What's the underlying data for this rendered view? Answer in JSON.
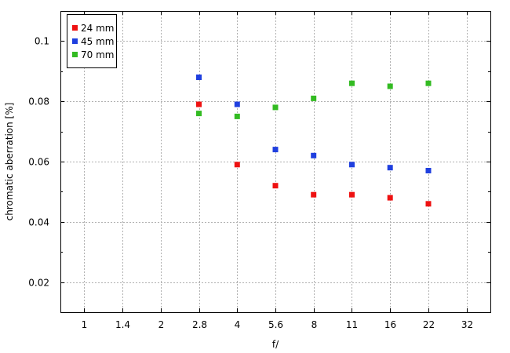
{
  "chart_data": {
    "type": "scatter",
    "title": "",
    "xlabel": "f/",
    "ylabel": "chromatic aberration [%]",
    "categories": [
      "1",
      "1.4",
      "2",
      "2.8",
      "4",
      "5.6",
      "8",
      "11",
      "16",
      "22",
      "32"
    ],
    "yticks": [
      "0.02",
      "0.04",
      "0.06",
      "0.08",
      "0.1"
    ],
    "ylim": [
      0.01,
      0.11
    ],
    "grid": true,
    "legend_position": "top-left",
    "series": [
      {
        "name": "24 mm",
        "color": "#ee1111",
        "x": [
          "2.8",
          "4",
          "5.6",
          "8",
          "11",
          "16",
          "22"
        ],
        "values": [
          0.079,
          0.059,
          0.052,
          0.049,
          0.049,
          0.048,
          0.046
        ]
      },
      {
        "name": "45 mm",
        "color": "#1f3fdf",
        "x": [
          "2.8",
          "4",
          "5.6",
          "8",
          "11",
          "16",
          "22"
        ],
        "values": [
          0.088,
          0.079,
          0.064,
          0.062,
          0.059,
          0.058,
          0.057
        ]
      },
      {
        "name": "70 mm",
        "color": "#33bb22",
        "x": [
          "2.8",
          "4",
          "5.6",
          "8",
          "11",
          "16",
          "22"
        ],
        "values": [
          0.076,
          0.075,
          0.078,
          0.081,
          0.086,
          0.085,
          0.086
        ]
      }
    ]
  }
}
